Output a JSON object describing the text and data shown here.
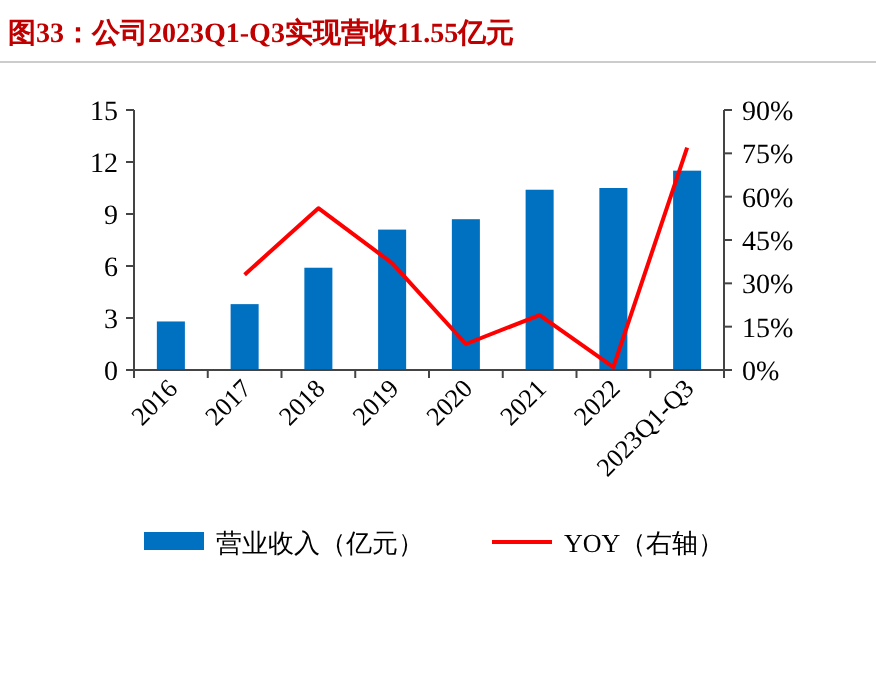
{
  "chart_data": {
    "type": "bar",
    "title": "图33：公司2023Q1-Q3实现营收11.55亿元",
    "categories": [
      "2016",
      "2017",
      "2018",
      "2019",
      "2020",
      "2021",
      "2022",
      "2023Q1-Q3"
    ],
    "series": [
      {
        "name": "营业收入（亿元）",
        "color": "#0070c0",
        "values": [
          2.8,
          3.8,
          5.9,
          8.1,
          8.7,
          10.4,
          10.5,
          11.5
        ]
      },
      {
        "name": "YOY（右轴）",
        "type": "line",
        "axis": "y2",
        "color": "#ff0000",
        "marker": "none",
        "values": [
          null,
          33,
          56,
          37,
          9,
          19,
          1,
          77
        ]
      }
    ],
    "ylim": [
      0,
      15
    ],
    "yticks": [
      0,
      3,
      6,
      9,
      12,
      15
    ],
    "y2lim": [
      0,
      90
    ],
    "y2ticks": [
      {
        "value": 0,
        "label": "0%"
      },
      {
        "value": 15,
        "label": "15%"
      },
      {
        "value": 30,
        "label": "30%"
      },
      {
        "value": 45,
        "label": "45%"
      },
      {
        "value": 60,
        "label": "60%"
      },
      {
        "value": 75,
        "label": "75%"
      },
      {
        "value": 90,
        "label": "90%"
      }
    ],
    "legend": "bottom",
    "grid": false
  }
}
